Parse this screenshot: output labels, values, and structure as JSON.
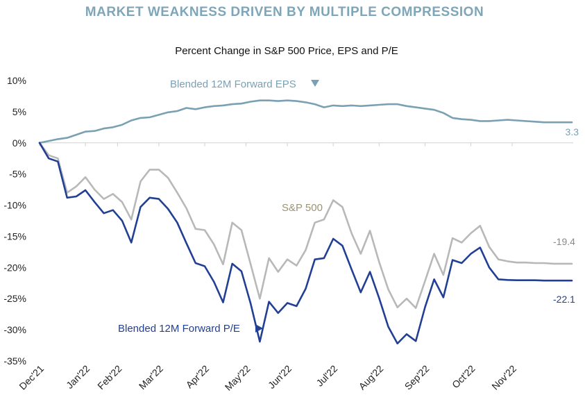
{
  "chart_data": {
    "type": "line",
    "title": "MARKET WEAKNESS DRIVEN BY MULTIPLE COMPRESSION",
    "subtitle": "Percent Change in S&P 500 Price, EPS and P/E",
    "ylim": [
      -35,
      10
    ],
    "yticks": [
      "10%",
      "5%",
      "0%",
      "-5%",
      "-10%",
      "-15%",
      "-20%",
      "-25%",
      "-30%",
      "-35%"
    ],
    "ytick_values": [
      10,
      5,
      0,
      -5,
      -10,
      -15,
      -20,
      -25,
      -30,
      -35
    ],
    "xlim": [
      0,
      58
    ],
    "categories": [
      "Dec'21",
      "Jan'22",
      "Feb'22",
      "Mar'22",
      "Apr'22",
      "May'22",
      "Jun'22",
      "Jul'22",
      "Aug'22",
      "Sep'22",
      "Oct'22",
      "Nov'22"
    ],
    "category_positions": [
      0,
      5,
      8.5,
      13,
      18,
      22.5,
      27,
      32,
      37,
      42,
      47,
      51.5
    ],
    "grid": false,
    "colors": {
      "title": "#7fa6b8",
      "eps": "#7aa0b3",
      "sp500": "#b8b8b8",
      "pe": "#213f93",
      "sp500_label": "#9b9473"
    },
    "series": [
      {
        "name": "Blended 12M Forward EPS",
        "key": "eps",
        "end_label": "3.3",
        "x": [
          0,
          1,
          2,
          3,
          4,
          5,
          6,
          7,
          8,
          9,
          10,
          11,
          12,
          13,
          14,
          15,
          16,
          17,
          18,
          19,
          20,
          21,
          22,
          23,
          24,
          25,
          26,
          27,
          28,
          29,
          30,
          31,
          32,
          33,
          34,
          35,
          36,
          37,
          38,
          39,
          40,
          41,
          42,
          43,
          44,
          45,
          46,
          47,
          48,
          49,
          50,
          51,
          52,
          53,
          54,
          55,
          56,
          57,
          58
        ],
        "values": [
          0,
          0.3,
          0.6,
          0.8,
          1.3,
          1.8,
          1.9,
          2.3,
          2.5,
          2.9,
          3.6,
          4.0,
          4.1,
          4.5,
          4.9,
          5.1,
          5.6,
          5.4,
          5.7,
          5.9,
          6.0,
          6.2,
          6.3,
          6.6,
          6.8,
          6.8,
          6.7,
          6.8,
          6.7,
          6.5,
          6.2,
          5.7,
          6.0,
          5.9,
          6.0,
          5.9,
          6.0,
          6.1,
          6.2,
          6.2,
          5.9,
          5.7,
          5.5,
          5.3,
          4.8,
          4.0,
          3.8,
          3.7,
          3.5,
          3.5,
          3.6,
          3.7,
          3.6,
          3.5,
          3.4,
          3.3,
          3.3,
          3.3,
          3.3
        ]
      },
      {
        "name": "S&P 500",
        "key": "sp500",
        "end_label": "-19.4",
        "x": [
          0,
          1,
          2,
          3,
          4,
          5,
          6,
          7,
          8,
          9,
          10,
          11,
          12,
          13,
          14,
          15,
          16,
          17,
          18,
          19,
          20,
          21,
          22,
          23,
          24,
          25,
          26,
          27,
          28,
          29,
          30,
          31,
          32,
          33,
          34,
          35,
          36,
          37,
          38,
          39,
          40,
          41,
          42,
          43,
          44,
          45,
          46,
          47,
          48,
          49,
          50,
          51,
          52,
          53,
          54,
          55,
          56,
          57,
          58
        ],
        "values": [
          0,
          -2,
          -2.5,
          -8,
          -7,
          -5.5,
          -7.5,
          -9,
          -8.2,
          -9.5,
          -12.3,
          -6.2,
          -4.3,
          -4.3,
          -5.6,
          -8,
          -10.5,
          -13.8,
          -14,
          -16.3,
          -19.5,
          -12.8,
          -14,
          -19.5,
          -25,
          -18.5,
          -20.7,
          -18.7,
          -19.7,
          -17.2,
          -12.8,
          -12.3,
          -9.2,
          -10.3,
          -14.5,
          -17.8,
          -14.1,
          -19.1,
          -23.5,
          -26.4,
          -25,
          -26.5,
          -22.2,
          -17.8,
          -21.2,
          -15.3,
          -16,
          -14.5,
          -13.3,
          -16.7,
          -18.7,
          -19,
          -19.2,
          -19.2,
          -19.3,
          -19.3,
          -19.4,
          -19.4,
          -19.4
        ]
      },
      {
        "name": "Blended 12M Forward P/E",
        "key": "pe",
        "end_label": "-22.1",
        "x": [
          0,
          1,
          2,
          3,
          4,
          5,
          6,
          7,
          8,
          9,
          10,
          11,
          12,
          13,
          14,
          15,
          16,
          17,
          18,
          19,
          20,
          21,
          22,
          23,
          24,
          25,
          26,
          27,
          28,
          29,
          30,
          31,
          32,
          33,
          34,
          35,
          36,
          37,
          38,
          39,
          40,
          41,
          42,
          43,
          44,
          45,
          46,
          47,
          48,
          49,
          50,
          51,
          52,
          53,
          54,
          55,
          56,
          57,
          58
        ],
        "values": [
          0,
          -2.5,
          -3,
          -8.8,
          -8.6,
          -7.6,
          -9.5,
          -11.3,
          -10.8,
          -12.5,
          -16,
          -10.3,
          -8.8,
          -9,
          -10.6,
          -12.8,
          -16.1,
          -19.3,
          -19.8,
          -22.3,
          -25.6,
          -19.4,
          -20.6,
          -25.8,
          -31.9,
          -25.5,
          -27.3,
          -25.7,
          -26.2,
          -23.4,
          -18.7,
          -18.5,
          -15.4,
          -16.5,
          -20.3,
          -24,
          -20.7,
          -24.9,
          -29.5,
          -32.2,
          -30.7,
          -31.8,
          -26.4,
          -21.9,
          -24.8,
          -18.8,
          -19.3,
          -17.8,
          -16.8,
          -20,
          -21.9,
          -22,
          -22.05,
          -22.05,
          -22.05,
          -22.1,
          -22.1,
          -22.1,
          -22.1
        ]
      }
    ],
    "annotations": {
      "eps_label": "Blended 12M Forward EPS",
      "sp500_label": "S&P 500",
      "pe_label": "Blended 12M Forward P/E",
      "eps_arrow_icon": "triangle-down-icon",
      "pe_arrow_icon": "triangle-right-icon"
    }
  }
}
